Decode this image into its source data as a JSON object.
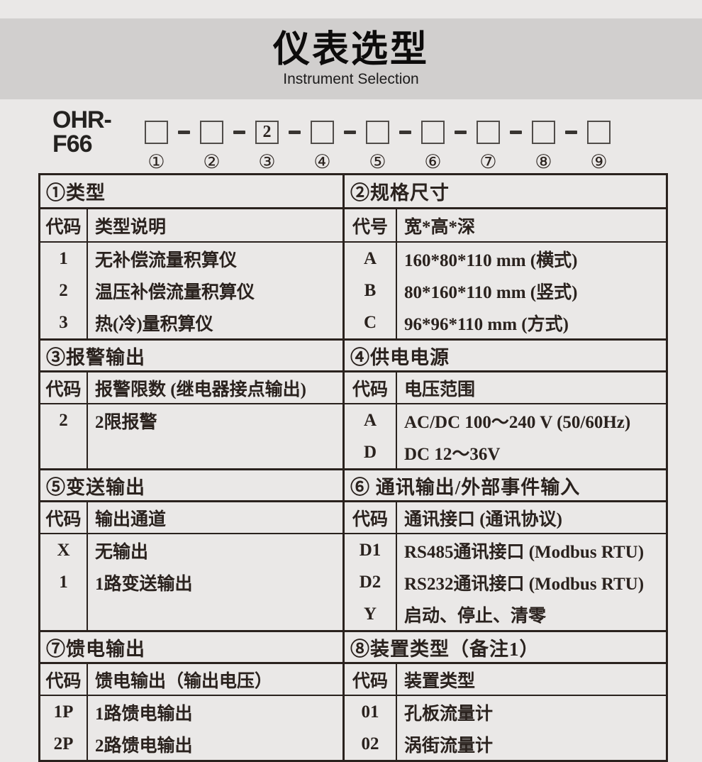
{
  "header": {
    "title_zh": "仪表选型",
    "title_en": "Instrument Selection"
  },
  "model": {
    "prefix": "OHR-F66",
    "separator": "-",
    "boxes": [
      "",
      "",
      "2",
      "",
      "",
      "",
      "",
      "",
      ""
    ],
    "indices": [
      "①",
      "②",
      "③",
      "④",
      "⑤",
      "⑥",
      "⑦",
      "⑧",
      "⑨"
    ]
  },
  "sections": [
    {
      "title": "①类型",
      "code_header": "代码",
      "desc_header": "类型说明",
      "rows": [
        {
          "code": "1",
          "desc": "无补偿流量积算仪"
        },
        {
          "code": "2",
          "desc": "温压补偿流量积算仪"
        },
        {
          "code": "3",
          "desc": "热(冷)量积算仪"
        }
      ]
    },
    {
      "title": "②规格尺寸",
      "code_header": "代号",
      "desc_header": "宽*高*深",
      "rows": [
        {
          "code": "A",
          "desc": "160*80*110 mm (横式)"
        },
        {
          "code": "B",
          "desc": "80*160*110 mm (竖式)"
        },
        {
          "code": "C",
          "desc": "96*96*110 mm (方式)"
        }
      ]
    },
    {
      "title": "③报警输出",
      "code_header": "代码",
      "desc_header": "报警限数 (继电器接点输出)",
      "rows": [
        {
          "code": "2",
          "desc": "2限报警"
        }
      ]
    },
    {
      "title": "④供电电源",
      "code_header": "代码",
      "desc_header": "电压范围",
      "rows": [
        {
          "code": "A",
          "desc": "AC/DC 100～240 V (50/60Hz)"
        },
        {
          "code": "D",
          "desc": "DC 12～36V"
        }
      ]
    },
    {
      "title": "⑤变送输出",
      "code_header": "代码",
      "desc_header": "输出通道",
      "rows": [
        {
          "code": "X",
          "desc": "无输出"
        },
        {
          "code": "1",
          "desc": "1路变送输出"
        }
      ]
    },
    {
      "title": "⑥ 通讯输出/外部事件输入",
      "code_header": "代码",
      "desc_header": "通讯接口 (通讯协议)",
      "rows": [
        {
          "code": "D1",
          "desc": "RS485通讯接口 (Modbus RTU)"
        },
        {
          "code": "D2",
          "desc": "RS232通讯接口 (Modbus RTU)"
        },
        {
          "code": "Y",
          "desc": "启动、停止、清零"
        }
      ]
    },
    {
      "title": "⑦馈电输出",
      "code_header": "代码",
      "desc_header": "馈电输出（输出电压）",
      "rows": [
        {
          "code": "1P",
          "desc": "1路馈电输出"
        },
        {
          "code": "2P",
          "desc": "2路馈电输出"
        }
      ]
    },
    {
      "title": "⑧装置类型（备注1）",
      "code_header": "代码",
      "desc_header": "装置类型",
      "rows": [
        {
          "code": "01",
          "desc": "孔板流量计"
        },
        {
          "code": "02",
          "desc": "涡街流量计"
        }
      ]
    }
  ],
  "colors": {
    "page_bg": "#eae8e7",
    "title_band_bg": "#d1cfce",
    "ink": "#2a221e"
  }
}
